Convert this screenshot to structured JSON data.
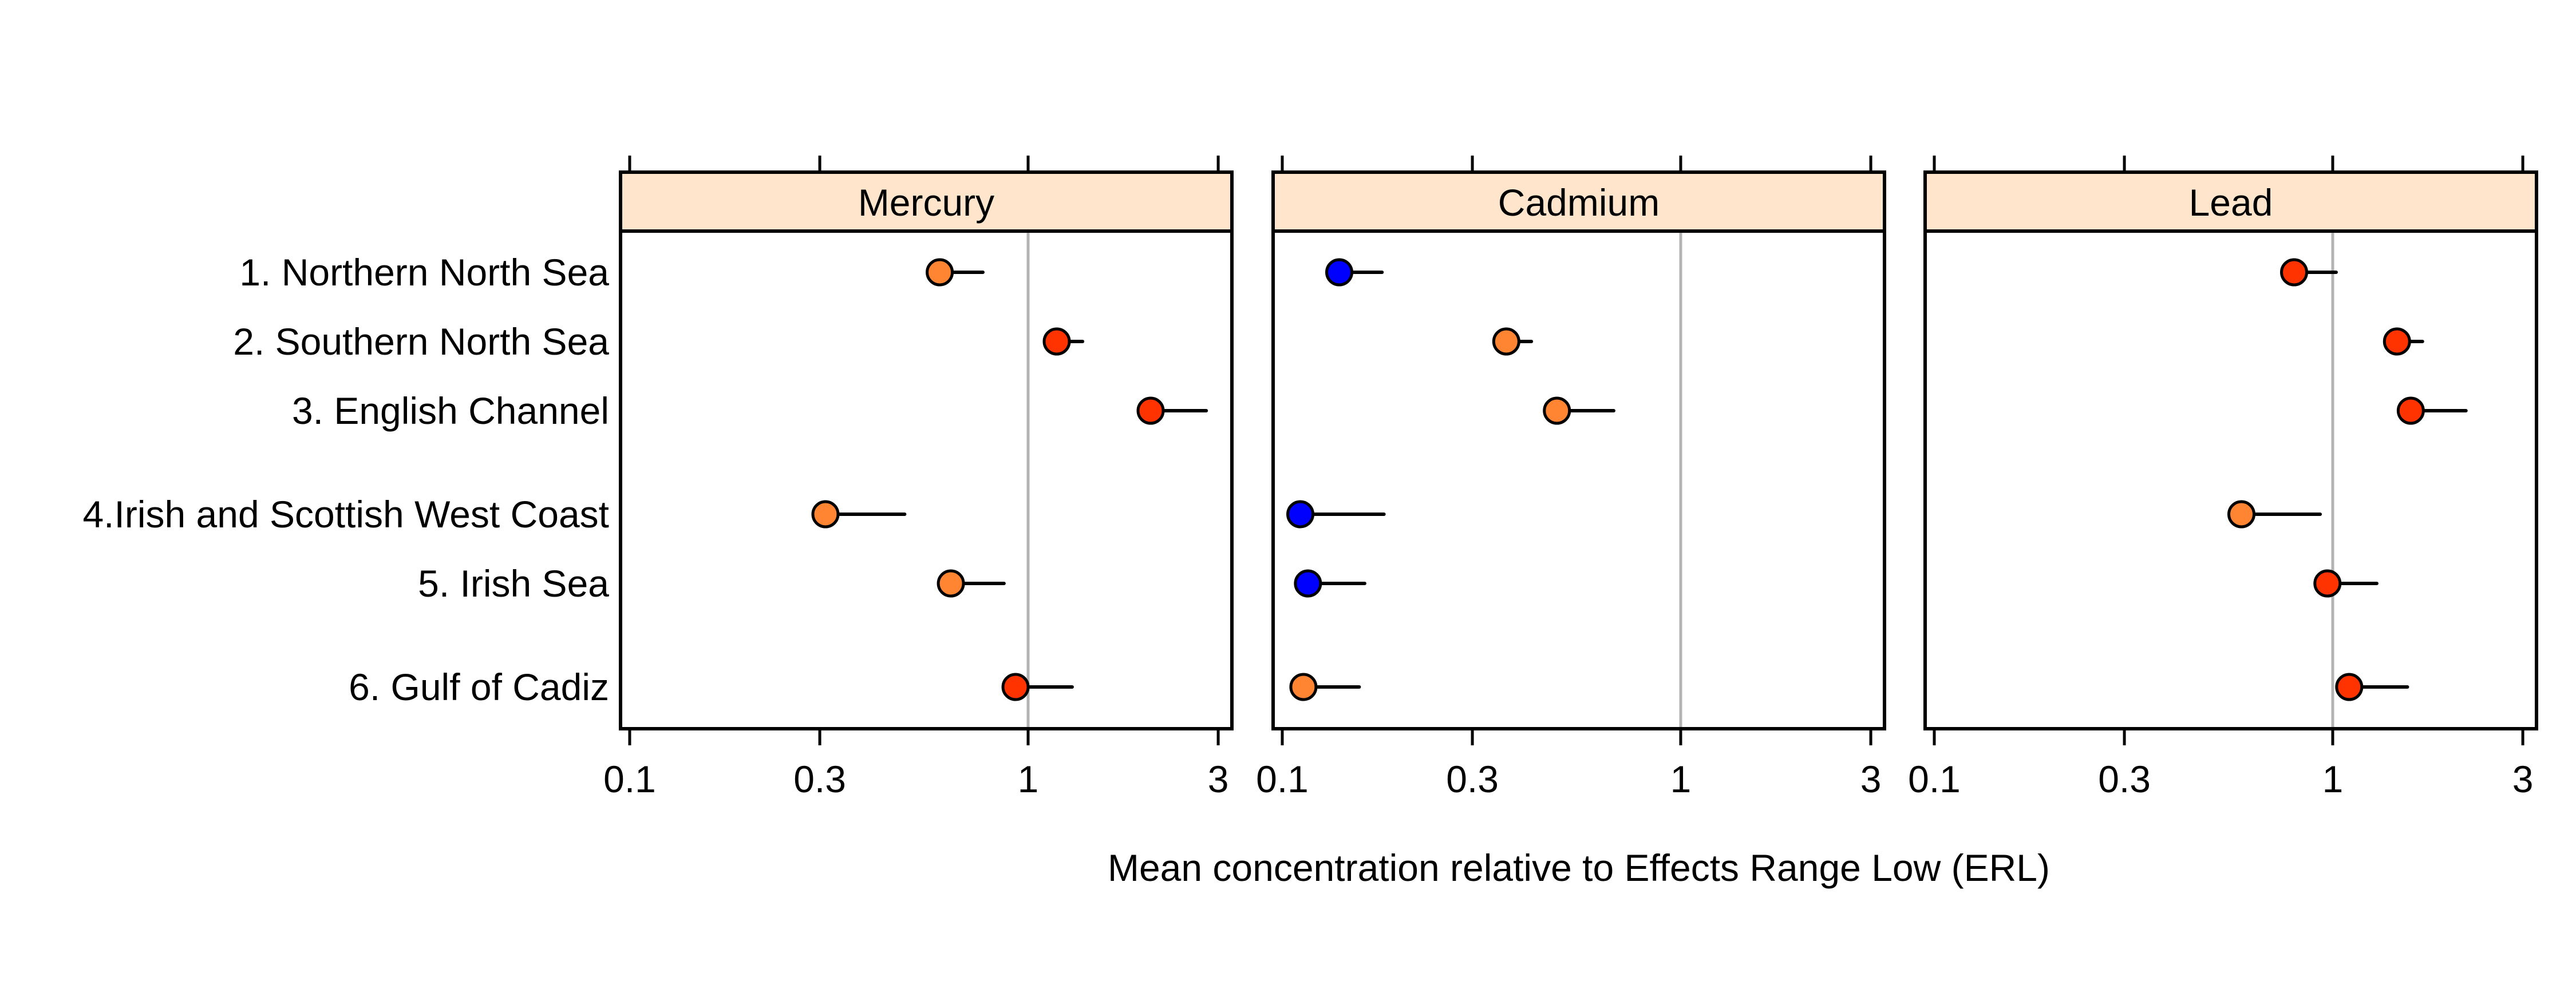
{
  "chart_data": {
    "type": "scatter",
    "subtype": "dot-plot with upper confidence whiskers (faceted)",
    "xlabel": "Mean concentration relative to Effects Range Low (ERL)",
    "xscale": "log",
    "xlim": [
      0.095,
      3.25
    ],
    "xticks": [
      0.1,
      0.3,
      1,
      3
    ],
    "xtick_labels": [
      "0.1",
      "0.3",
      "1",
      "3"
    ],
    "reference_line": 1,
    "categories": [
      "1. Northern North Sea",
      "2. Southern North Sea",
      "3. English Channel",
      "4.Irish and Scottish West Coast",
      "5. Irish Sea",
      "6. Gulf of Cadiz"
    ],
    "status_colors": {
      "blue": "#0000FF",
      "orange": "#FF8533",
      "red": "#FF3300"
    },
    "panels": [
      {
        "title": "Mercury",
        "points": [
          {
            "value": 0.6,
            "upper": 0.77,
            "status": "orange"
          },
          {
            "value": 1.18,
            "upper": 1.37,
            "status": "red"
          },
          {
            "value": 2.03,
            "upper": 2.8,
            "status": "red"
          },
          {
            "value": 0.31,
            "upper": 0.49,
            "status": "orange"
          },
          {
            "value": 0.64,
            "upper": 0.87,
            "status": "orange"
          },
          {
            "value": 0.93,
            "upper": 1.29,
            "status": "red"
          }
        ]
      },
      {
        "title": "Cadmium",
        "points": [
          {
            "value": 0.139,
            "upper": 0.178,
            "status": "blue"
          },
          {
            "value": 0.365,
            "upper": 0.422,
            "status": "orange"
          },
          {
            "value": 0.489,
            "upper": 0.679,
            "status": "orange"
          },
          {
            "value": 0.111,
            "upper": 0.18,
            "status": "blue"
          },
          {
            "value": 0.116,
            "upper": 0.161,
            "status": "blue"
          },
          {
            "value": 0.113,
            "upper": 0.156,
            "status": "orange"
          }
        ]
      },
      {
        "title": "Lead",
        "points": [
          {
            "value": 0.8,
            "upper": 1.02,
            "status": "red"
          },
          {
            "value": 1.45,
            "upper": 1.68,
            "status": "red"
          },
          {
            "value": 1.57,
            "upper": 2.16,
            "status": "red"
          },
          {
            "value": 0.59,
            "upper": 0.93,
            "status": "orange"
          },
          {
            "value": 0.97,
            "upper": 1.29,
            "status": "red"
          },
          {
            "value": 1.1,
            "upper": 1.54,
            "status": "red"
          }
        ]
      }
    ]
  }
}
